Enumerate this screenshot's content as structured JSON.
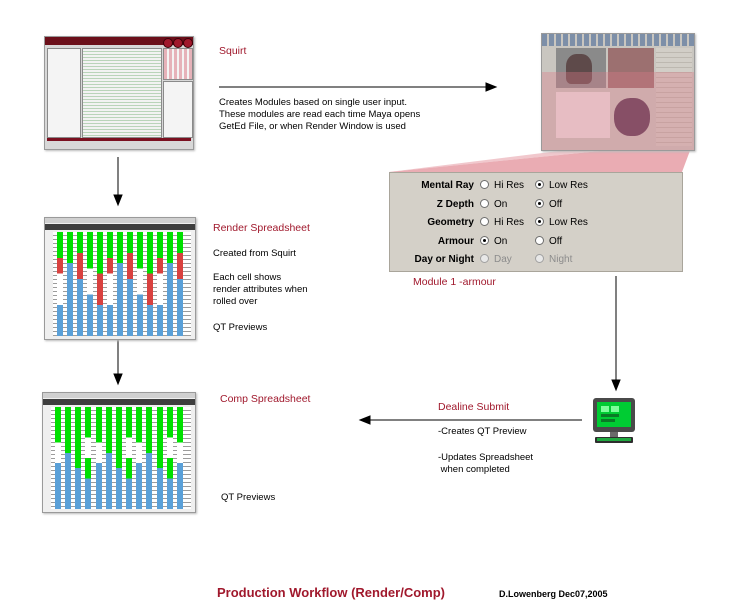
{
  "squirt": {
    "title": "Squirt",
    "description_lines": [
      "Creates Modules based on single user input.",
      "These modules are read each time Maya opens",
      "GetEd File, or when Render Window is used"
    ]
  },
  "module_panel": {
    "caption": "Module 1 -armour",
    "rows": [
      {
        "label": "Mental Ray",
        "opt1": "Hi Res",
        "opt2": "Low Res",
        "selected": 2,
        "enabled": true
      },
      {
        "label": "Z Depth",
        "opt1": "On",
        "opt2": "Off",
        "selected": 2,
        "enabled": true
      },
      {
        "label": "Geometry",
        "opt1": "Hi Res",
        "opt2": "Low Res",
        "selected": 2,
        "enabled": true
      },
      {
        "label": "Armour",
        "opt1": "On",
        "opt2": "Off",
        "selected": 1,
        "enabled": true
      },
      {
        "label": "Day or Night",
        "opt1": "Day",
        "opt2": "Night",
        "selected": 0,
        "enabled": false
      }
    ]
  },
  "render_spreadsheet": {
    "title": "Render Spreadsheet",
    "line1": "Created from Squirt",
    "desc_lines": [
      "Each cell shows",
      "render attributes when",
      "rolled over"
    ],
    "previews": "QT Previews"
  },
  "comp_spreadsheet": {
    "title": "Comp Spreadsheet",
    "previews": "QT Previews"
  },
  "deadline": {
    "title": "Dealine Submit",
    "line1": "-Creates QT Preview",
    "line2a": "-Updates Spreadsheet",
    "line2b": " when completed"
  },
  "footer": {
    "title": "Production Workflow (Render/Comp)",
    "credit": "D.Lowenberg Dec07,2005"
  },
  "colors": {
    "accent_red": "#a0182c",
    "sheet_green": "#00e000",
    "sheet_red": "#d9413f",
    "sheet_blue": "#5aa0d8",
    "pink_shade": "#e8a3ab"
  }
}
